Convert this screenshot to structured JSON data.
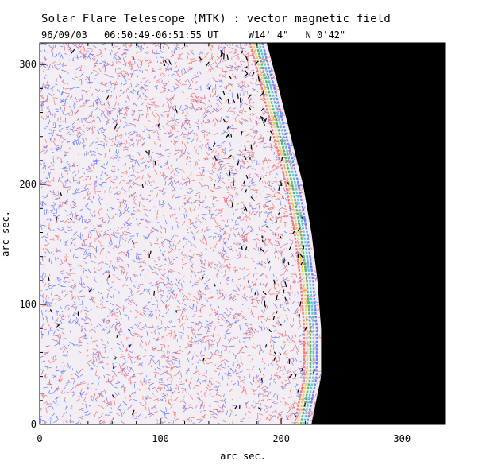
{
  "header": {
    "title": "Solar Flare Telescope (MTK) : vector magnetic field",
    "date": "96/09/03",
    "time_range": "06:50:49-06:51:55 UT",
    "position_x": "W14' 4\"",
    "position_y": "N 0'42\""
  },
  "chart_data": {
    "type": "heatmap",
    "xlabel": "arc sec.",
    "ylabel": "arc sec.",
    "xlim": [
      0,
      336
    ],
    "ylim": [
      0,
      318
    ],
    "x_ticks": [
      "0",
      "100",
      "200",
      "300"
    ],
    "y_ticks": [
      "0",
      "100",
      "200",
      "300"
    ],
    "x_tick_values": [
      0,
      100,
      200,
      300
    ],
    "y_tick_values": [
      0,
      100,
      200,
      300
    ],
    "limb": [
      [
        225,
        0
      ],
      [
        233,
        40
      ],
      [
        233,
        80
      ],
      [
        230,
        120
      ],
      [
        225,
        160
      ],
      [
        218,
        200
      ],
      [
        208,
        240
      ],
      [
        198,
        280
      ],
      [
        188,
        318
      ]
    ],
    "colors": {
      "positive_field": "#f05a5a",
      "negative_field": "#4a64ff",
      "limb_green": "#22aa44",
      "limb_cyan": "#19c6d8",
      "limb_yellow": "#e6cf2a",
      "off_disk": "#000000",
      "transverse_vectors": "#000000"
    }
  }
}
